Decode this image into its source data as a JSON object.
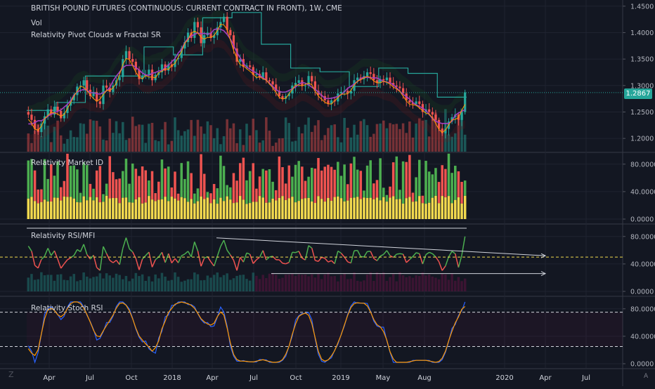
{
  "header": {
    "symbol_title": "BRITISH POUND FUTURES (CONTINUOUS: CURRENT CONTRACT IN FRONT), 1W, CME",
    "volume_label": "Vol",
    "indicator_label": "Relativity Pivot Clouds w Fractal SR"
  },
  "colors": {
    "background": "#131722",
    "grid": "#1f2330",
    "up": "#26a69a",
    "down": "#ef5350",
    "ma": "#a33fbf",
    "pivot": "#26a69a",
    "green_osc": "#4caf50",
    "red_osc": "#ef5350",
    "yellow": "#f2d94e",
    "stoch_k": "#2962ff",
    "stoch_d": "#ff9800",
    "axis_text": "#b2b5be"
  },
  "price_tag": "1.2867",
  "footer": {
    "left_icon": "Z",
    "right_icon": "A"
  },
  "chart_data": [
    {
      "type": "candlestick",
      "title": "BRITISH POUND FUTURES (CONTINUOUS: CURRENT CONTRACT IN FRONT), 1W, CME",
      "ylim": [
        1.175,
        1.455
      ],
      "yticks": [
        "1.2000",
        "1.2500",
        "1.3000",
        "1.3500",
        "1.4000",
        "1.4500"
      ],
      "current_price": 1.2867,
      "x_ticks": [
        "Apr",
        "Jul",
        "Oct",
        "2018",
        "Apr",
        "Jul",
        "Oct",
        "2019",
        "May",
        "Aug",
        "2020",
        "Apr",
        "Jul"
      ],
      "closes": [
        1.245,
        1.235,
        1.218,
        1.212,
        1.228,
        1.242,
        1.255,
        1.245,
        1.26,
        1.252,
        1.238,
        1.248,
        1.262,
        1.272,
        1.282,
        1.298,
        1.3,
        1.31,
        1.292,
        1.28,
        1.288,
        1.27,
        1.265,
        1.3,
        1.296,
        1.288,
        1.3,
        1.31,
        1.316,
        1.35,
        1.365,
        1.35,
        1.345,
        1.33,
        1.312,
        1.318,
        1.32,
        1.33,
        1.31,
        1.32,
        1.325,
        1.34,
        1.328,
        1.34,
        1.335,
        1.35,
        1.352,
        1.37,
        1.382,
        1.4,
        1.39,
        1.42,
        1.41,
        1.38,
        1.395,
        1.4,
        1.39,
        1.395,
        1.41,
        1.42,
        1.43,
        1.405,
        1.395,
        1.37,
        1.345,
        1.35,
        1.335,
        1.338,
        1.335,
        1.32,
        1.322,
        1.315,
        1.325,
        1.31,
        1.308,
        1.302,
        1.29,
        1.28,
        1.275,
        1.28,
        1.285,
        1.3,
        1.305,
        1.31,
        1.3,
        1.3,
        1.318,
        1.308,
        1.29,
        1.282,
        1.28,
        1.272,
        1.265,
        1.272,
        1.27,
        1.285,
        1.288,
        1.29,
        1.285,
        1.29,
        1.31,
        1.315,
        1.312,
        1.318,
        1.325,
        1.322,
        1.31,
        1.305,
        1.312,
        1.31,
        1.315,
        1.305,
        1.3,
        1.298,
        1.295,
        1.285,
        1.272,
        1.268,
        1.265,
        1.27,
        1.265,
        1.25,
        1.255,
        1.25,
        1.245,
        1.235,
        1.218,
        1.21,
        1.218,
        1.232,
        1.24,
        1.245,
        1.235,
        1.25,
        1.287
      ],
      "volume_ylim": [
        0,
        1
      ]
    },
    {
      "type": "bar",
      "title": "Relativity Market ID",
      "ylim": [
        0,
        90
      ],
      "yticks": [
        "0.0000",
        "40.0000",
        "80.0000"
      ]
    },
    {
      "type": "line",
      "title": "Relativity RSI/MFI",
      "ylim": [
        0,
        90
      ],
      "yticks": [
        "0.0000",
        "40.0000",
        "80.0000"
      ],
      "reference_level": 50
    },
    {
      "type": "line",
      "title": "Relativity Stoch RSI",
      "ylim": [
        0,
        90
      ],
      "yticks": [
        "0.0000",
        "40.0000",
        "80.0000"
      ],
      "levels": [
        25,
        75
      ]
    }
  ]
}
